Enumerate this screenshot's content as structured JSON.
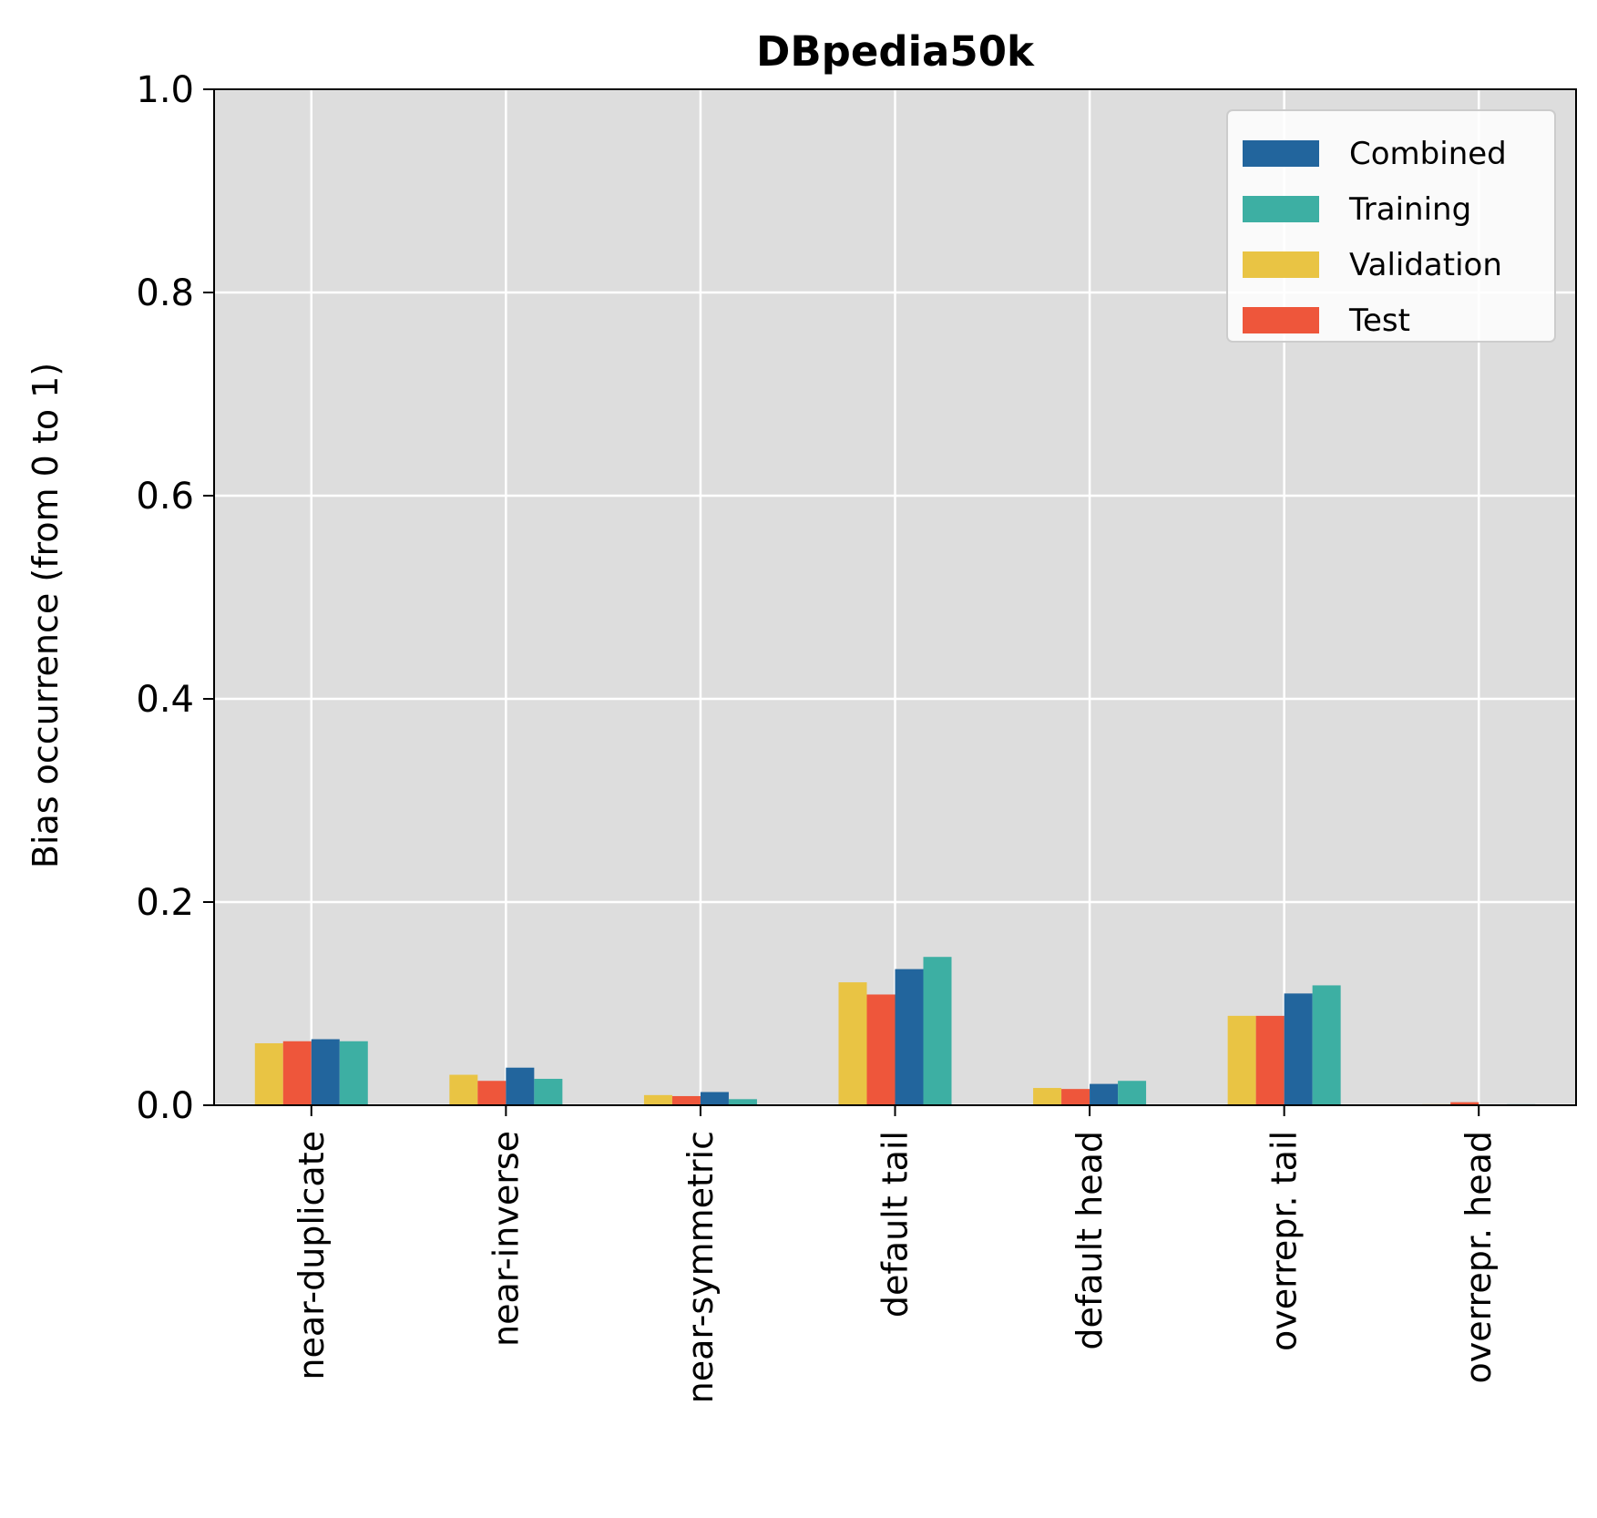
{
  "chart_data": {
    "type": "bar",
    "title": "DBpedia50k",
    "xlabel": "",
    "ylabel": "Bias occurrence (from 0 to 1)",
    "ylim": [
      0,
      1.0
    ],
    "yticks": [
      "0.0",
      "0.2",
      "0.4",
      "0.6",
      "0.8",
      "1.0"
    ],
    "grid": true,
    "legend_position": "top-right",
    "categories": [
      "near-duplicate",
      "near-inverse",
      "near-symmetric",
      "default tail",
      "default head",
      "overrepr. tail",
      "overrepr. head"
    ],
    "series": [
      {
        "name": "Validation",
        "color": "#E9C444",
        "values": [
          0.061,
          0.03,
          0.01,
          0.121,
          0.017,
          0.088,
          0.001
        ]
      },
      {
        "name": "Test",
        "color": "#EE563B",
        "values": [
          0.063,
          0.024,
          0.009,
          0.109,
          0.016,
          0.088,
          0.003
        ]
      },
      {
        "name": "Combined",
        "color": "#22659D",
        "values": [
          0.065,
          0.037,
          0.013,
          0.134,
          0.021,
          0.11,
          0.0
        ]
      },
      {
        "name": "Training",
        "color": "#3DAFA3",
        "values": [
          0.063,
          0.026,
          0.006,
          0.146,
          0.024,
          0.118,
          0.001
        ]
      }
    ],
    "legend_order": [
      "Combined",
      "Training",
      "Validation",
      "Test"
    ],
    "background_color": "#DDDDDD",
    "grid_color": "#FFFFFF"
  }
}
